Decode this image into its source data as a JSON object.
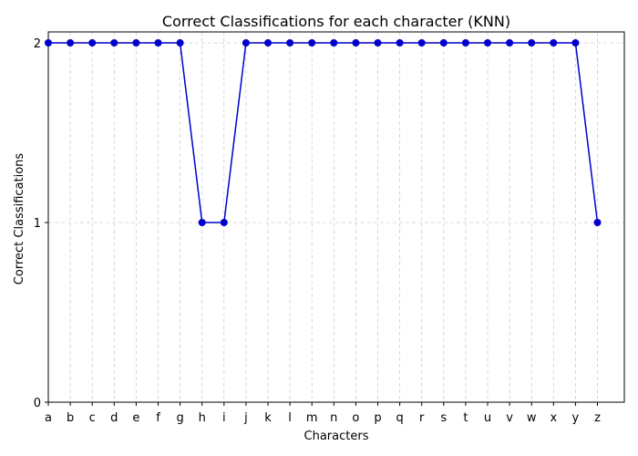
{
  "chart_data": {
    "type": "line",
    "title": "Correct Classifications for each character (KNN)",
    "xlabel": "Characters",
    "ylabel": "Correct Classifications",
    "categories": [
      "a",
      "b",
      "c",
      "d",
      "e",
      "f",
      "g",
      "h",
      "i",
      "j",
      "k",
      "l",
      "m",
      "n",
      "o",
      "p",
      "q",
      "r",
      "s",
      "t",
      "u",
      "v",
      "w",
      "x",
      "y",
      "z"
    ],
    "series": [
      {
        "values": [
          2,
          2,
          2,
          2,
          2,
          2,
          2,
          1,
          1,
          2,
          2,
          2,
          2,
          2,
          2,
          2,
          2,
          2,
          2,
          2,
          2,
          2,
          2,
          2,
          2,
          1
        ],
        "color": "#0000cc",
        "marker": "circle"
      }
    ],
    "yticks": [
      "0",
      "1",
      "2"
    ],
    "ylim": [
      0,
      2
    ],
    "grid": true,
    "legend": "none"
  }
}
